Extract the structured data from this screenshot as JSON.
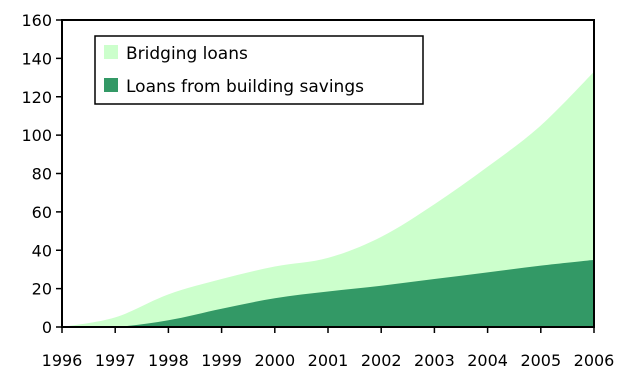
{
  "chart_data": {
    "type": "area",
    "stacked": true,
    "x": [
      "1996",
      "1997",
      "1998",
      "1999",
      "2000",
      "2001",
      "2002",
      "2003",
      "2004",
      "2005",
      "2006"
    ],
    "series": [
      {
        "name": "Loans from building savings",
        "color": "#339966",
        "values": [
          0,
          0,
          3.5,
          9.5,
          15,
          18.5,
          21.5,
          25,
          28.5,
          32,
          35
        ]
      },
      {
        "name": "Bridging loans",
        "color": "#ccffcc",
        "values": [
          0,
          5,
          13.5,
          15.5,
          16.5,
          17.5,
          25.5,
          39,
          55,
          73,
          98
        ]
      }
    ],
    "legend": [
      "Bridging loans",
      "Loans from building savings"
    ],
    "legend_position": "top-left",
    "ylim": [
      0,
      160
    ],
    "yticks": [
      "0",
      "20",
      "40",
      "60",
      "80",
      "100",
      "120",
      "140",
      "160"
    ],
    "xlabel": "",
    "ylabel": "",
    "title": "",
    "grid": false
  }
}
